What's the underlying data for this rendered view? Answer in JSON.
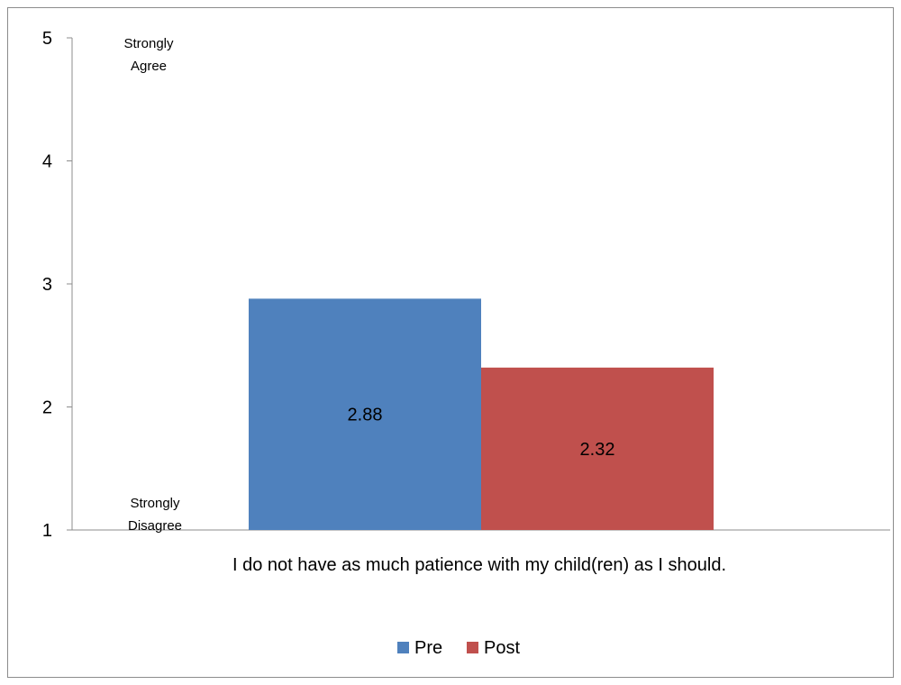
{
  "chart_data": {
    "type": "bar",
    "title": "",
    "xlabel": "",
    "ylabel": "",
    "categories": [
      "I do not have as much patience with my child(ren) as I should."
    ],
    "series": [
      {
        "name": "Pre",
        "values": [
          2.88
        ],
        "color": "#4f81bd"
      },
      {
        "name": "Post",
        "values": [
          2.32
        ],
        "color": "#c0504d"
      }
    ],
    "data_labels": [
      "2.88",
      "2.32"
    ],
    "ylim": [
      1,
      5
    ],
    "yticks": [
      "1",
      "2",
      "3",
      "4",
      "5"
    ],
    "scale_notes": {
      "top": [
        "Strongly",
        "Agree"
      ],
      "bottom": [
        "Strongly",
        "Disagree"
      ]
    },
    "grid": false,
    "legend_position": "bottom"
  }
}
